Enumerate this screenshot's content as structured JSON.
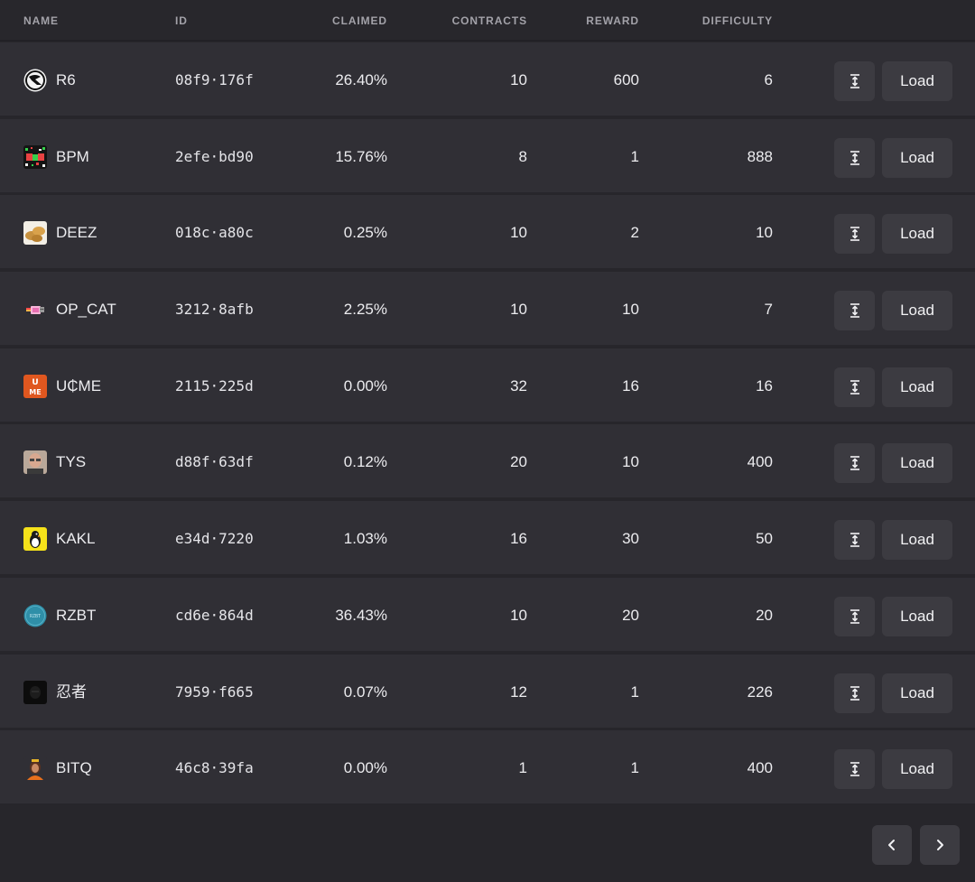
{
  "columns": {
    "name": "NAME",
    "id": "ID",
    "claimed": "CLAIMED",
    "contracts": "CONTRACTS",
    "reward": "REWARD",
    "difficulty": "DIFFICULTY"
  },
  "rows": [
    {
      "name": "R6",
      "id": "08f9·176f",
      "claimed": "26.40%",
      "contracts": "10",
      "reward": "600",
      "difficulty": "6",
      "icon": "r6-logo-icon",
      "load_label": "Load"
    },
    {
      "name": "BPM",
      "id": "2efe·bd90",
      "claimed": "15.76%",
      "contracts": "8",
      "reward": "1",
      "difficulty": "888",
      "icon": "bpm-logo-icon",
      "load_label": "Load"
    },
    {
      "name": "DEEZ",
      "id": "018c·a80c",
      "claimed": "0.25%",
      "contracts": "10",
      "reward": "2",
      "difficulty": "10",
      "icon": "deez-logo-icon",
      "load_label": "Load"
    },
    {
      "name": "OP_CAT",
      "id": "3212·8afb",
      "claimed": "2.25%",
      "contracts": "10",
      "reward": "10",
      "difficulty": "7",
      "icon": "op-cat-logo-icon",
      "load_label": "Load"
    },
    {
      "name": "U₵ME",
      "id": "2115·225d",
      "claimed": "0.00%",
      "contracts": "32",
      "reward": "16",
      "difficulty": "16",
      "icon": "ucme-logo-icon",
      "load_label": "Load"
    },
    {
      "name": "TYS",
      "id": "d88f·63df",
      "claimed": "0.12%",
      "contracts": "20",
      "reward": "10",
      "difficulty": "400",
      "icon": "tys-avatar-icon",
      "load_label": "Load"
    },
    {
      "name": "KAKL",
      "id": "e34d·7220",
      "claimed": "1.03%",
      "contracts": "16",
      "reward": "30",
      "difficulty": "50",
      "icon": "kakl-logo-icon",
      "load_label": "Load"
    },
    {
      "name": "RZBT",
      "id": "cd6e·864d",
      "claimed": "36.43%",
      "contracts": "10",
      "reward": "20",
      "difficulty": "20",
      "icon": "rzbt-logo-icon",
      "load_label": "Load"
    },
    {
      "name": "忍者",
      "id": "7959·f665",
      "claimed": "0.07%",
      "contracts": "12",
      "reward": "1",
      "difficulty": "226",
      "icon": "ninja-logo-icon",
      "load_label": "Load"
    },
    {
      "name": "BITQ",
      "id": "46c8·39fa",
      "claimed": "0.00%",
      "contracts": "1",
      "reward": "1",
      "difficulty": "400",
      "icon": "bitq-avatar-icon",
      "load_label": "Load"
    }
  ],
  "pagination": {
    "prev_icon": "chevron-left-icon",
    "next_icon": "chevron-right-icon"
  },
  "colors": {
    "background": "#27262b",
    "row": "#302f35",
    "button": "#3c3b41",
    "header_text": "#a3a2a9"
  }
}
